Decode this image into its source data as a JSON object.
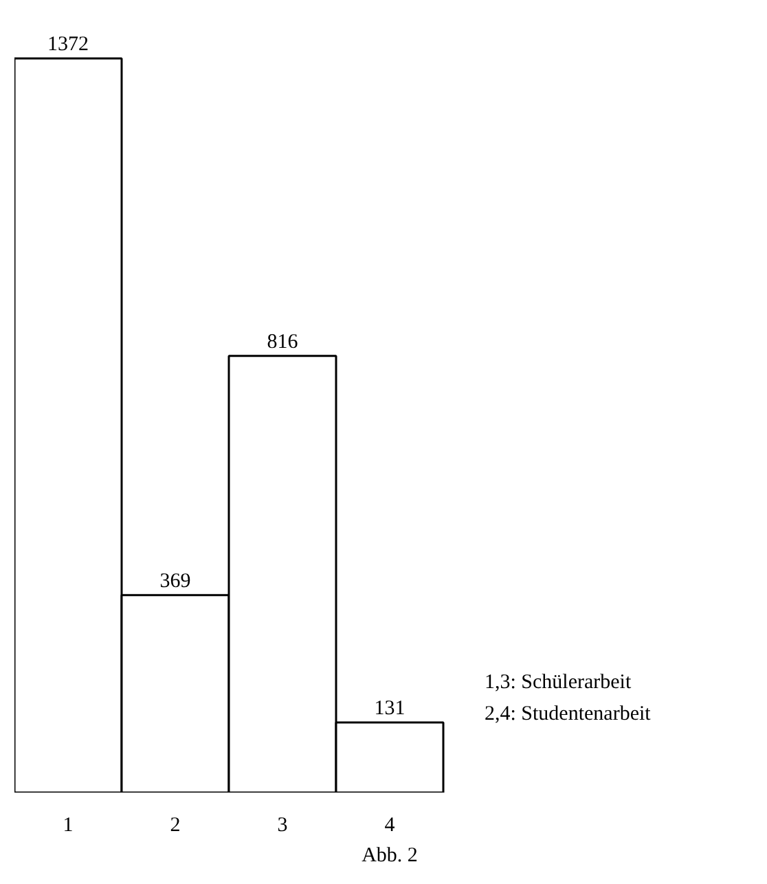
{
  "chart_data": {
    "type": "bar",
    "categories": [
      "1",
      "2",
      "3",
      "4"
    ],
    "values": [
      1372,
      369,
      816,
      131
    ],
    "color": "#ffffff",
    "data_labels": true,
    "grid": false,
    "annotations": [
      "1,3: Schülerarbeit",
      "2,4: Studentenarbeit",
      "Abb. 2"
    ]
  }
}
